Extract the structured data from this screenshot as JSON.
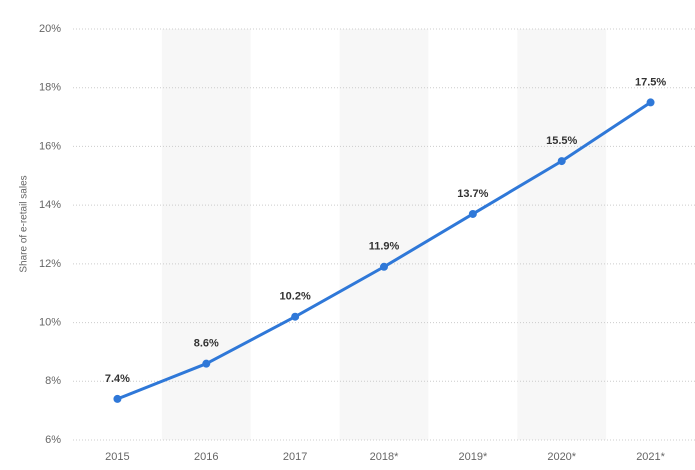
{
  "chart_data": {
    "type": "line",
    "y_label": "Share of e-retail sales",
    "categories": [
      "2015",
      "2016",
      "2017",
      "2018*",
      "2019*",
      "2020*",
      "2021*"
    ],
    "series": [
      {
        "color": "#2f78d8",
        "values": [
          7.4,
          8.6,
          10.2,
          11.9,
          13.7,
          15.5,
          17.5
        ],
        "value_labels": [
          "7.4%",
          "8.6%",
          "10.2%",
          "11.9%",
          "13.7%",
          "15.5%",
          "17.5%"
        ]
      }
    ],
    "ylim": [
      6,
      20
    ],
    "yticks": [
      {
        "value": 6,
        "label": "6%"
      },
      {
        "value": 8,
        "label": "8%"
      },
      {
        "value": 10,
        "label": "10%"
      },
      {
        "value": 12,
        "label": "12%"
      },
      {
        "value": 14,
        "label": "14%"
      },
      {
        "value": 16,
        "label": "16%"
      },
      {
        "value": 18,
        "label": "18%"
      },
      {
        "value": 20,
        "label": "20%"
      }
    ],
    "grid": true
  }
}
